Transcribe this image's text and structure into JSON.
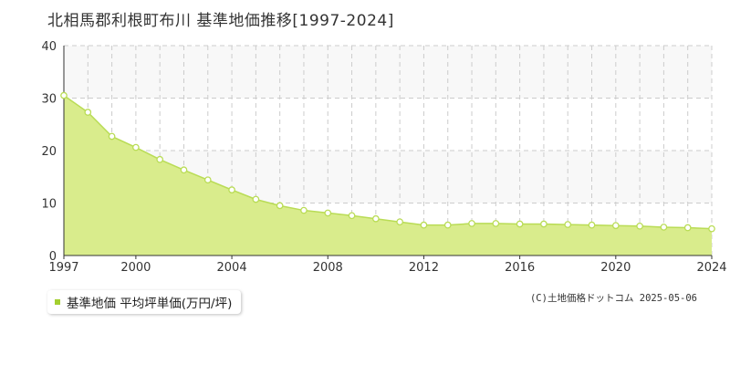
{
  "title": "北相馬郡利根町布川 基準地価推移[1997-2024]",
  "legend": {
    "label": "基準地価 平均坪単価(万円/坪)",
    "color": "#a3cf2f"
  },
  "copyright": "(C)土地価格ドットコム 2025-05-06",
  "colors": {
    "area_fill": "#d9ec8c",
    "line": "#b9dc55",
    "point_fill": "#ffffff",
    "point_stroke": "#b9dc55",
    "band": "#f8f8f8",
    "grid": "#cccccc"
  },
  "chart_data": {
    "type": "area",
    "x": [
      1997,
      1998,
      1999,
      2000,
      2001,
      2002,
      2003,
      2004,
      2005,
      2006,
      2007,
      2008,
      2009,
      2010,
      2011,
      2012,
      2013,
      2014,
      2015,
      2016,
      2017,
      2018,
      2019,
      2020,
      2021,
      2022,
      2023,
      2024
    ],
    "series": [
      {
        "name": "基準地価 平均坪単価(万円/坪)",
        "values": [
          30.5,
          27.3,
          22.7,
          20.6,
          18.3,
          16.3,
          14.4,
          12.5,
          10.7,
          9.5,
          8.6,
          8.1,
          7.6,
          7.0,
          6.4,
          5.8,
          5.8,
          6.1,
          6.1,
          6.0,
          6.0,
          5.9,
          5.8,
          5.7,
          5.6,
          5.4,
          5.3,
          5.1
        ]
      }
    ],
    "xticks": [
      "1997",
      "2000",
      "2004",
      "2008",
      "2012",
      "2016",
      "2020",
      "2024"
    ],
    "yticks": [
      "0",
      "10",
      "20",
      "30",
      "40"
    ],
    "xlim": [
      1997,
      2024
    ],
    "ylim": [
      0,
      40
    ],
    "grid": true,
    "legend_position": "bottom-left"
  }
}
